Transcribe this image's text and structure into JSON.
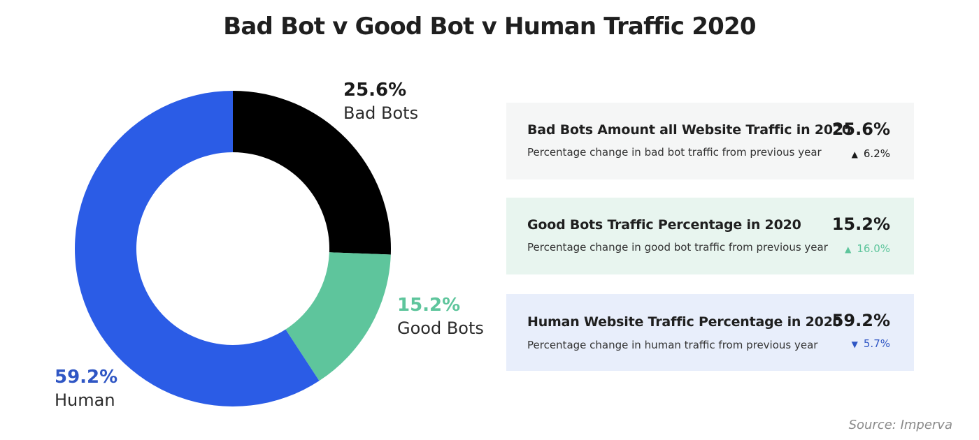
{
  "title": "Bad Bot v Good Bot v Human Traffic 2020",
  "chart_data": {
    "type": "pie",
    "title": "Bad Bot v Good Bot v Human Traffic 2020",
    "style": "donut",
    "slices": [
      {
        "label": "Bad Bots",
        "value": 25.6,
        "display": "25.6%",
        "color": "#000000",
        "label_color": "#1a1a1a"
      },
      {
        "label": "Good Bots",
        "value": 15.2,
        "display": "15.2%",
        "color": "#5ec59c",
        "label_color": "#5ec59c"
      },
      {
        "label": "Human",
        "value": 59.2,
        "display": "59.2%",
        "color": "#2b5ce6",
        "label_color": "#2f56c4"
      }
    ]
  },
  "cards": [
    {
      "title": "Bad Bots Amount all Website Traffic in 2020",
      "subtitle": "Percentage change in bad bot traffic from previous year",
      "value": "25.6%",
      "arrow": "▲",
      "change": "6.2%",
      "bg": "#f5f6f6",
      "change_color": "#1a1a1a"
    },
    {
      "title": "Good Bots Traffic Percentage in 2020",
      "subtitle": "Percentage change in good bot traffic from previous year",
      "value": "15.2%",
      "arrow": "▲",
      "change": "16.0%",
      "bg": "#e8f5ef",
      "change_color": "#5ec59c"
    },
    {
      "title": "Human Website Traffic Percentage in 2020",
      "subtitle": "Percentage change in human traffic from previous year",
      "value": "59.2%",
      "arrow": "▼",
      "change": "5.7%",
      "bg": "#e8eefb",
      "change_color": "#2f56c4"
    }
  ],
  "source": "Source: Imperva"
}
